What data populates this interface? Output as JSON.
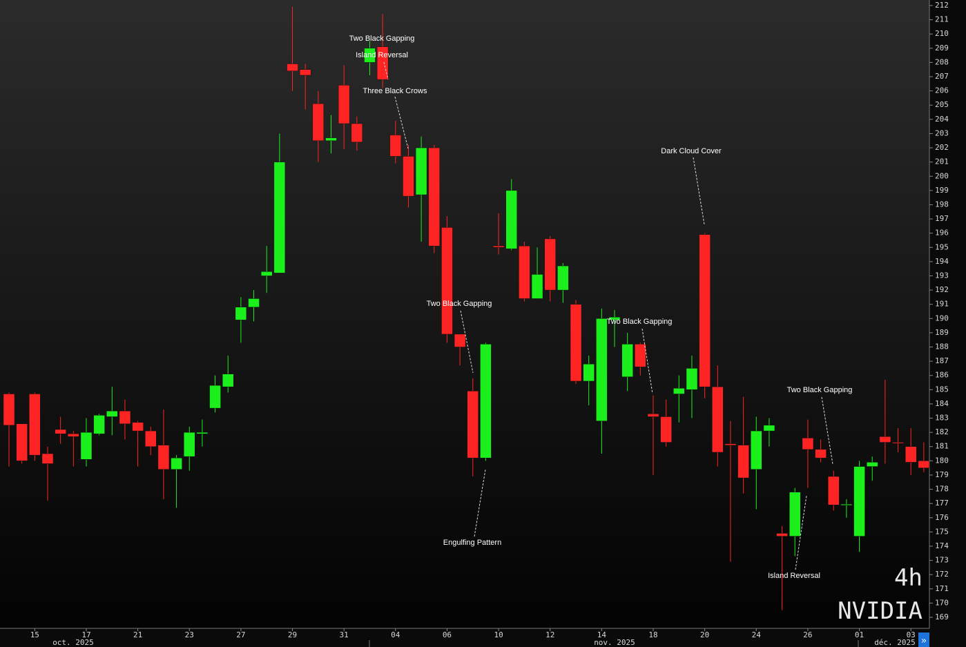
{
  "chart_data": {
    "type": "candlestick",
    "symbol": "NVIDIA",
    "interval": "4h",
    "categories": [
      null,
      null,
      "15",
      null,
      null,
      null,
      "17",
      null,
      null,
      null,
      "21",
      null,
      null,
      null,
      "23",
      null,
      null,
      null,
      "27",
      null,
      null,
      null,
      "29",
      null,
      null,
      null,
      "31",
      null,
      null,
      null,
      "04",
      null,
      null,
      null,
      "06",
      null,
      null,
      null,
      "10",
      null,
      null,
      null,
      "12",
      null,
      null,
      null,
      "14",
      null,
      null,
      null,
      "18",
      null,
      null,
      null,
      "20",
      null,
      null,
      null,
      "24",
      null,
      null,
      null,
      "26",
      null,
      null,
      null,
      "01",
      null,
      null,
      null,
      "03",
      null
    ],
    "months": [
      "oct. 2025",
      "nov. 2025",
      "déc. 2025"
    ],
    "open": [
      184.7,
      182.6,
      184.7,
      180.5,
      182.2,
      181.9,
      180.1,
      181.9,
      183.1,
      183.5,
      182.7,
      182.1,
      181.1,
      179.4,
      180.3,
      181.9,
      183.7,
      185.2,
      189.9,
      190.8,
      193.0,
      193.2,
      207.9,
      207.5,
      205.1,
      202.5,
      206.4,
      203.7,
      208.0,
      209.1,
      202.9,
      201.4,
      198.7,
      202.0,
      196.4,
      188.9,
      184.9,
      180.2,
      195.1,
      194.9,
      195.1,
      191.4,
      195.6,
      192.0,
      191.0,
      185.6,
      182.8,
      189.9,
      185.9,
      188.2,
      183.3,
      183.1,
      184.7,
      185.0,
      195.9,
      185.2,
      181.2,
      181.1,
      179.4,
      182.1,
      174.9,
      174.7,
      181.6,
      180.8,
      178.9,
      176.9,
      174.7,
      179.6,
      181.7,
      181.3,
      181.0,
      180.0
    ],
    "high": [
      184.8,
      182.6,
      184.8,
      181.0,
      183.1,
      182.1,
      183.0,
      183.3,
      185.2,
      184.3,
      182.8,
      182.4,
      183.6,
      180.4,
      182.4,
      182.9,
      186.0,
      187.4,
      191.5,
      192.0,
      195.1,
      203.0,
      211.9,
      207.9,
      206.0,
      204.3,
      207.8,
      204.2,
      209.5,
      211.4,
      203.9,
      202.2,
      202.8,
      202.2,
      197.2,
      188.9,
      185.8,
      188.3,
      197.4,
      199.8,
      195.4,
      195.0,
      195.8,
      193.9,
      191.3,
      187.4,
      190.7,
      190.6,
      189.0,
      188.3,
      184.6,
      184.3,
      186.0,
      187.4,
      196.0,
      186.7,
      182.8,
      184.5,
      183.1,
      183.0,
      175.4,
      178.1,
      182.9,
      181.5,
      179.3,
      177.3,
      180.0,
      180.3,
      185.7,
      182.3,
      182.3,
      181.3
    ],
    "low": [
      179.6,
      179.8,
      180.0,
      177.2,
      181.2,
      179.6,
      179.6,
      181.8,
      181.8,
      181.5,
      179.6,
      180.4,
      177.3,
      176.7,
      179.3,
      181.0,
      183.4,
      184.8,
      188.3,
      189.8,
      191.8,
      193.2,
      206.0,
      204.7,
      201.0,
      201.6,
      201.9,
      201.8,
      207.1,
      206.2,
      200.9,
      197.8,
      195.4,
      194.6,
      188.3,
      186.7,
      178.9,
      180.0,
      194.5,
      194.8,
      191.2,
      191.4,
      191.2,
      191.1,
      185.4,
      183.9,
      180.5,
      188.0,
      184.9,
      186.0,
      179.0,
      181.0,
      182.7,
      183.0,
      184.4,
      179.6,
      172.9,
      177.7,
      176.6,
      181.0,
      169.5,
      173.3,
      178.1,
      179.9,
      176.5,
      176.0,
      173.6,
      178.6,
      179.8,
      180.6,
      179.0,
      179.2
    ],
    "close": [
      182.5,
      180.0,
      180.4,
      179.8,
      181.9,
      181.7,
      182.0,
      183.2,
      183.5,
      182.6,
      182.1,
      181.0,
      179.4,
      180.2,
      182.0,
      182.0,
      185.3,
      186.1,
      190.8,
      191.4,
      193.3,
      201.0,
      207.4,
      207.1,
      202.5,
      202.7,
      203.7,
      202.4,
      209.0,
      206.8,
      201.4,
      198.6,
      202.0,
      195.1,
      188.9,
      188.0,
      180.2,
      188.2,
      195.0,
      199.0,
      191.4,
      193.1,
      192.0,
      193.7,
      185.6,
      186.8,
      190.0,
      190.1,
      188.2,
      186.6,
      183.1,
      181.3,
      185.1,
      186.5,
      185.2,
      180.6,
      181.1,
      178.8,
      182.1,
      182.5,
      174.7,
      177.8,
      180.8,
      180.2,
      176.9,
      176.95,
      179.6,
      179.9,
      181.3,
      181.25,
      179.9,
      179.5
    ],
    "up_color": "#1cf01c",
    "down_color": "#ff2424",
    "ylim": [
      168.9,
      212.3
    ],
    "yticks": [
      169,
      170,
      171,
      172,
      173,
      174,
      175,
      176,
      177,
      178,
      179,
      180,
      181,
      182,
      183,
      184,
      185,
      186,
      187,
      188,
      189,
      190,
      191,
      192,
      193,
      194,
      195,
      196,
      197,
      198,
      199,
      200,
      201,
      202,
      203,
      204,
      205,
      206,
      207,
      208,
      209,
      210,
      211,
      212
    ],
    "annotations": [
      "Two Black Gapping",
      "Island Reversal",
      "Three Black Crows",
      "Two Black Gapping",
      "Engulfing Pattern",
      "Two Black Gapping",
      "Dark Cloud Cover",
      "Two Black Gapping",
      "Island Reversal"
    ]
  }
}
